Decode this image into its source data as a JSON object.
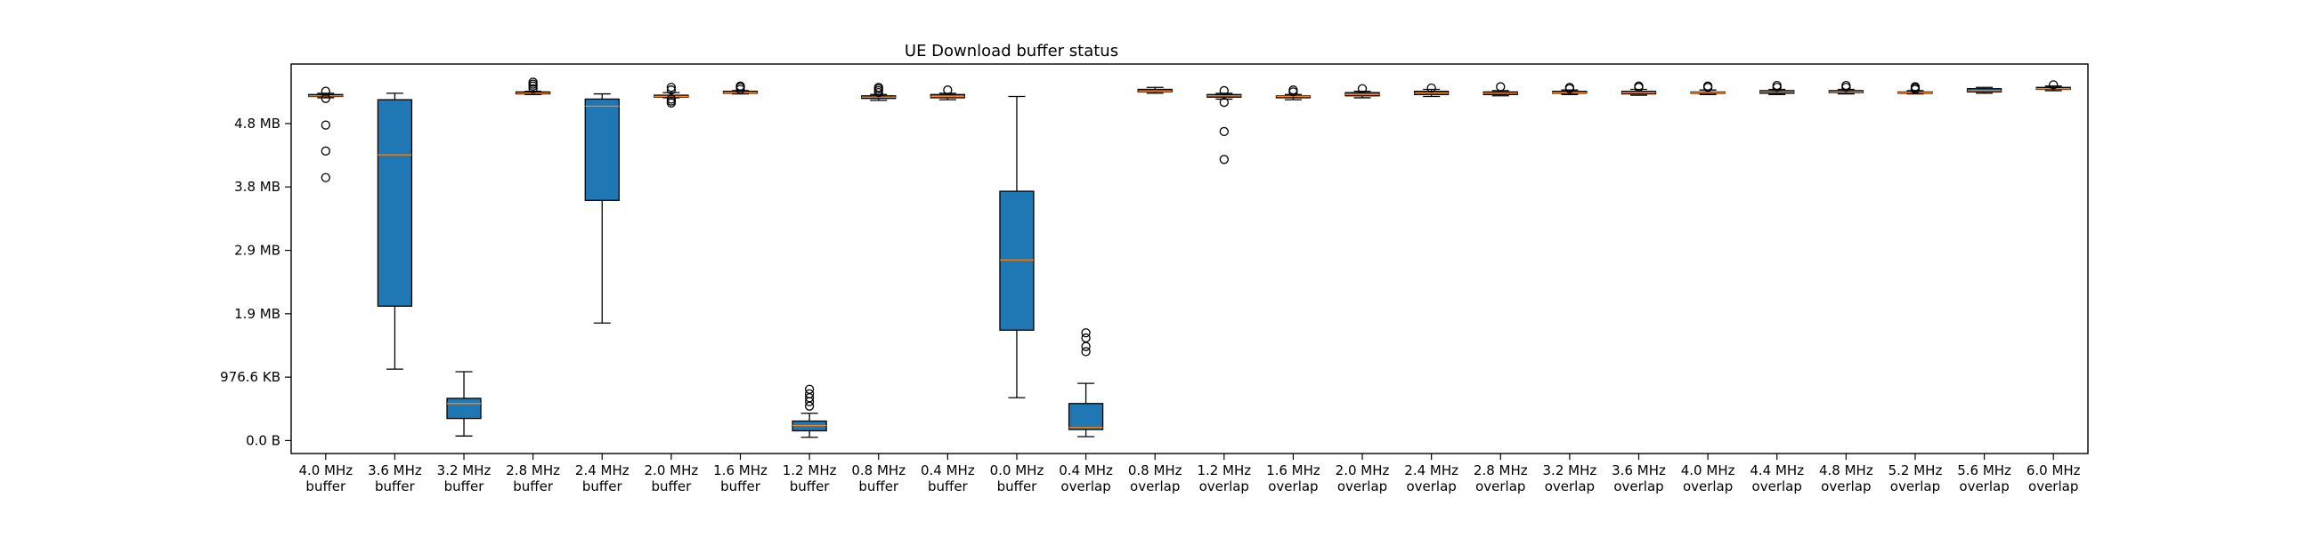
{
  "chart_data": {
    "type": "box",
    "title": "UE Download buffer status",
    "xlabel": "",
    "ylabel": "",
    "ylim_mb": [
      -0.2,
      5.8
    ],
    "y_ticks": [
      {
        "label": "0.0 B",
        "value_mb": 0.0
      },
      {
        "label": "976.6 KB",
        "value_mb": 0.9766
      },
      {
        "label": "1.9 MB",
        "value_mb": 1.9531
      },
      {
        "label": "2.9 MB",
        "value_mb": 2.9297
      },
      {
        "label": "3.8 MB",
        "value_mb": 3.9063
      },
      {
        "label": "4.8 MB",
        "value_mb": 4.8828
      }
    ],
    "grid": false,
    "colors": {
      "box_fill": "#1f77b4",
      "median": "#ff7f0e",
      "edge": "#000000"
    },
    "categories": [
      {
        "line1": "4.0 MHz",
        "line2": "buffer"
      },
      {
        "line1": "3.6 MHz",
        "line2": "buffer"
      },
      {
        "line1": "3.2 MHz",
        "line2": "buffer"
      },
      {
        "line1": "2.8 MHz",
        "line2": "buffer"
      },
      {
        "line1": "2.4 MHz",
        "line2": "buffer"
      },
      {
        "line1": "2.0 MHz",
        "line2": "buffer"
      },
      {
        "line1": "1.6 MHz",
        "line2": "buffer"
      },
      {
        "line1": "1.2 MHz",
        "line2": "buffer"
      },
      {
        "line1": "0.8 MHz",
        "line2": "buffer"
      },
      {
        "line1": "0.4 MHz",
        "line2": "buffer"
      },
      {
        "line1": "0.0 MHz",
        "line2": "buffer"
      },
      {
        "line1": "0.4 MHz",
        "line2": "overlap"
      },
      {
        "line1": "0.8 MHz",
        "line2": "overlap"
      },
      {
        "line1": "1.2 MHz",
        "line2": "overlap"
      },
      {
        "line1": "1.6 MHz",
        "line2": "overlap"
      },
      {
        "line1": "2.0 MHz",
        "line2": "overlap"
      },
      {
        "line1": "2.4 MHz",
        "line2": "overlap"
      },
      {
        "line1": "2.8 MHz",
        "line2": "overlap"
      },
      {
        "line1": "3.2 MHz",
        "line2": "overlap"
      },
      {
        "line1": "3.6 MHz",
        "line2": "overlap"
      },
      {
        "line1": "4.0 MHz",
        "line2": "overlap"
      },
      {
        "line1": "4.4 MHz",
        "line2": "overlap"
      },
      {
        "line1": "4.8 MHz",
        "line2": "overlap"
      },
      {
        "line1": "5.2 MHz",
        "line2": "overlap"
      },
      {
        "line1": "5.6 MHz",
        "line2": "overlap"
      },
      {
        "line1": "6.0 MHz",
        "line2": "overlap"
      }
    ],
    "boxes_mb": [
      {
        "whislo": 5.28,
        "q1": 5.3,
        "med": 5.31,
        "q3": 5.33,
        "whishi": 5.35,
        "fliers": [
          5.38,
          5.27,
          4.86,
          4.46,
          4.05
        ]
      },
      {
        "whislo": 1.1,
        "q1": 2.07,
        "med": 4.4,
        "q3": 5.25,
        "whishi": 5.35,
        "fliers": []
      },
      {
        "whislo": 0.07,
        "q1": 0.34,
        "med": 0.57,
        "q3": 0.65,
        "whishi": 1.06,
        "fliers": []
      },
      {
        "whislo": 5.33,
        "q1": 5.34,
        "med": 5.35,
        "q3": 5.37,
        "whishi": 5.38,
        "fliers": [
          5.42,
          5.46,
          5.49,
          5.52
        ]
      },
      {
        "whislo": 1.81,
        "q1": 3.7,
        "med": 5.15,
        "q3": 5.26,
        "whishi": 5.34,
        "fliers": []
      },
      {
        "whislo": 5.28,
        "q1": 5.29,
        "med": 5.3,
        "q3": 5.32,
        "whishi": 5.36,
        "fliers": [
          5.2,
          5.23,
          5.26,
          5.4,
          5.44
        ]
      },
      {
        "whislo": 5.34,
        "q1": 5.35,
        "med": 5.36,
        "q3": 5.38,
        "whishi": 5.39,
        "fliers": [
          5.41,
          5.44,
          5.46
        ]
      },
      {
        "whislo": 0.05,
        "q1": 0.15,
        "med": 0.23,
        "q3": 0.3,
        "whishi": 0.42,
        "fliers": [
          0.53,
          0.6,
          0.66,
          0.72,
          0.79
        ]
      },
      {
        "whislo": 5.24,
        "q1": 5.27,
        "med": 5.29,
        "q3": 5.31,
        "whishi": 5.33,
        "fliers": [
          5.36,
          5.39,
          5.42,
          5.44
        ]
      },
      {
        "whislo": 5.25,
        "q1": 5.28,
        "med": 5.3,
        "q3": 5.33,
        "whishi": 5.35,
        "fliers": [
          5.4
        ]
      },
      {
        "whislo": 0.66,
        "q1": 1.7,
        "med": 2.78,
        "q3": 3.84,
        "whishi": 5.3,
        "fliers": []
      },
      {
        "whislo": 0.06,
        "q1": 0.17,
        "med": 0.2,
        "q3": 0.57,
        "whishi": 0.88,
        "fliers": [
          1.37,
          1.45,
          1.58,
          1.66
        ]
      },
      {
        "whislo": 5.35,
        "q1": 5.37,
        "med": 5.38,
        "q3": 5.41,
        "whishi": 5.44,
        "fliers": []
      },
      {
        "whislo": 5.26,
        "q1": 5.29,
        "med": 5.31,
        "q3": 5.33,
        "whishi": 5.35,
        "fliers": [
          5.39,
          5.21,
          4.76,
          4.33
        ]
      },
      {
        "whislo": 5.25,
        "q1": 5.28,
        "med": 5.3,
        "q3": 5.31,
        "whishi": 5.33,
        "fliers": [
          5.37,
          5.4
        ]
      },
      {
        "whislo": 5.28,
        "q1": 5.31,
        "med": 5.33,
        "q3": 5.36,
        "whishi": 5.38,
        "fliers": [
          5.42
        ]
      },
      {
        "whislo": 5.3,
        "q1": 5.33,
        "med": 5.35,
        "q3": 5.38,
        "whishi": 5.41,
        "fliers": [
          5.43
        ]
      },
      {
        "whislo": 5.31,
        "q1": 5.33,
        "med": 5.35,
        "q3": 5.37,
        "whishi": 5.39,
        "fliers": [
          5.45
        ]
      },
      {
        "whislo": 5.33,
        "q1": 5.35,
        "med": 5.36,
        "q3": 5.38,
        "whishi": 5.4,
        "fliers": [
          5.42,
          5.44
        ]
      },
      {
        "whislo": 5.32,
        "q1": 5.34,
        "med": 5.36,
        "q3": 5.38,
        "whishi": 5.41,
        "fliers": [
          5.44,
          5.46
        ]
      },
      {
        "whislo": 5.33,
        "q1": 5.35,
        "med": 5.36,
        "q3": 5.37,
        "whishi": 5.4,
        "fliers": [
          5.44,
          5.46
        ]
      },
      {
        "whislo": 5.33,
        "q1": 5.35,
        "med": 5.37,
        "q3": 5.39,
        "whishi": 5.41,
        "fliers": [
          5.44,
          5.47
        ]
      },
      {
        "whislo": 5.34,
        "q1": 5.36,
        "med": 5.37,
        "q3": 5.39,
        "whishi": 5.41,
        "fliers": [
          5.44,
          5.47
        ]
      },
      {
        "whislo": 5.34,
        "q1": 5.35,
        "med": 5.36,
        "q3": 5.37,
        "whishi": 5.39,
        "fliers": [
          5.41,
          5.43,
          5.45
        ]
      },
      {
        "whislo": 5.35,
        "q1": 5.37,
        "med": 5.39,
        "q3": 5.42,
        "whishi": 5.44,
        "fliers": []
      },
      {
        "whislo": 5.39,
        "q1": 5.41,
        "med": 5.42,
        "q3": 5.44,
        "whishi": 5.46,
        "fliers": [
          5.48
        ]
      }
    ]
  }
}
